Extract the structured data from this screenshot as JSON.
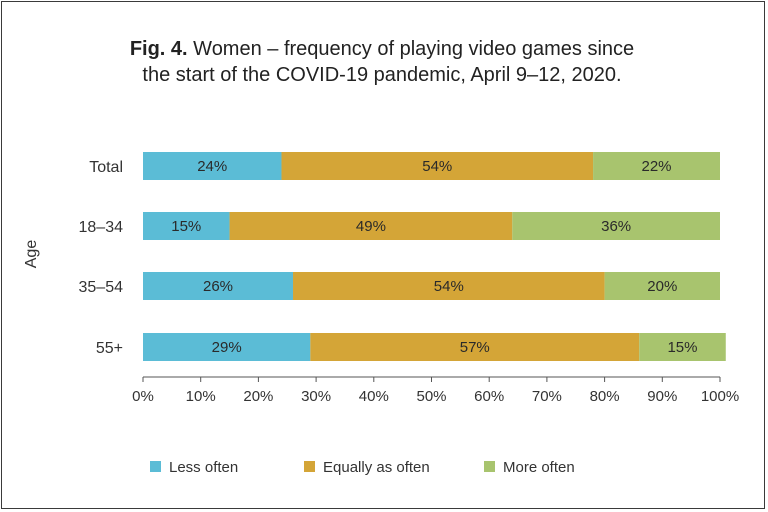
{
  "title": {
    "fig_label": "Fig. 4.",
    "line1": "Women – frequency of playing video games since",
    "line2": "the start of the COVID-19 pandemic, April 9–12, 2020."
  },
  "chart_data": {
    "type": "bar",
    "orientation": "horizontal",
    "stacked": true,
    "ylabel": "Age",
    "categories": [
      "Total",
      "18–34",
      "35–54",
      "55+"
    ],
    "series": [
      {
        "name": "Less often",
        "color": "#5bbcd6",
        "values": [
          24,
          15,
          26,
          29
        ],
        "labels": [
          "24%",
          "15%",
          "26%",
          "29%"
        ]
      },
      {
        "name": "Equally as often",
        "color": "#d4a537",
        "values": [
          54,
          49,
          54,
          57
        ],
        "labels": [
          "54%",
          "49%",
          "54%",
          "57%"
        ]
      },
      {
        "name": "More often",
        "color": "#a8c46e",
        "values": [
          22,
          36,
          20,
          15
        ],
        "labels": [
          "22%",
          "36%",
          "20%",
          "15%"
        ]
      }
    ],
    "xlim": [
      0,
      100
    ],
    "xticks": [
      "0%",
      "10%",
      "20%",
      "30%",
      "40%",
      "50%",
      "60%",
      "70%",
      "80%",
      "90%",
      "100%"
    ],
    "legend_position": "bottom",
    "grid": false
  }
}
